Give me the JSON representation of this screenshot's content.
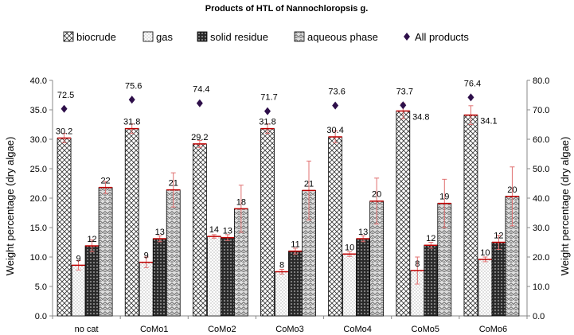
{
  "chart_data": {
    "type": "bar",
    "title": "Products of HTL of Nannochloropsis g.",
    "categories": [
      "no cat",
      "CoMo1",
      "CoMo2",
      "CoMo3",
      "CoMo4",
      "CoMo5",
      "CoMo6"
    ],
    "ylabel": "Weight percentage (dry algae)",
    "ylabel_right": "Weight percentage (dry algae)",
    "ylim": [
      0,
      40
    ],
    "ylim_right": [
      0,
      80
    ],
    "yticks": [
      "0.0",
      "5.0",
      "10.0",
      "15.0",
      "20.0",
      "25.0",
      "30.0",
      "35.0",
      "40.0"
    ],
    "yticks_right": [
      "0.0",
      "10.0",
      "20.0",
      "30.0",
      "40.0",
      "50.0",
      "60.0",
      "70.0",
      "80.0"
    ],
    "series": [
      {
        "name": "biocrude",
        "color": "#555555",
        "pattern": "crosshatch",
        "values": [
          30.2,
          31.8,
          29.2,
          31.8,
          30.4,
          34.8,
          34.1
        ],
        "labels": [
          "30.2",
          "31.8",
          "29.2",
          "31.8",
          "30.4",
          "34.8",
          "34.1"
        ],
        "errors": [
          0.8,
          0.8,
          0.6,
          0.8,
          1.0,
          1.3,
          1.6
        ]
      },
      {
        "name": "gas",
        "color": "#777777",
        "pattern": "dots",
        "values": [
          8.6,
          9.1,
          13.5,
          7.5,
          10.5,
          7.7,
          9.6
        ],
        "labels": [
          "9",
          "9",
          "14",
          "8",
          "10",
          "8",
          "10"
        ],
        "errors": [
          0.8,
          0.9,
          0.3,
          0.4,
          0.4,
          2.3,
          0.4
        ]
      },
      {
        "name": "solid residue",
        "color": "#222222",
        "pattern": "solid-dots",
        "values": [
          11.9,
          13.1,
          13.3,
          11.0,
          13.1,
          12.0,
          12.5
        ],
        "labels": [
          "12",
          "13",
          "13",
          "11",
          "13",
          "12",
          "12"
        ],
        "errors": [
          1.0,
          0.5,
          0.5,
          0.5,
          0.5,
          0.5,
          1.2
        ]
      },
      {
        "name": "aqueous phase",
        "color": "#999999",
        "pattern": "wave",
        "values": [
          21.8,
          21.4,
          18.2,
          21.3,
          19.5,
          19.1,
          20.3
        ],
        "labels": [
          "22",
          "21",
          "18",
          "21",
          "20",
          "19",
          "20"
        ],
        "errors": [
          1.0,
          2.9,
          4.0,
          5.0,
          3.9,
          4.1,
          5.0
        ]
      }
    ],
    "points": {
      "name": "All products",
      "axis": "right",
      "marker": "diamond",
      "color": "#2e0f4a",
      "values": [
        72.5,
        75.6,
        74.4,
        71.7,
        73.6,
        73.7,
        76.4
      ],
      "labels": [
        "72.5",
        "75.6",
        "74.4",
        "71.7",
        "73.6",
        "73.7",
        "76.4"
      ]
    },
    "legend": "top",
    "grid": false
  }
}
